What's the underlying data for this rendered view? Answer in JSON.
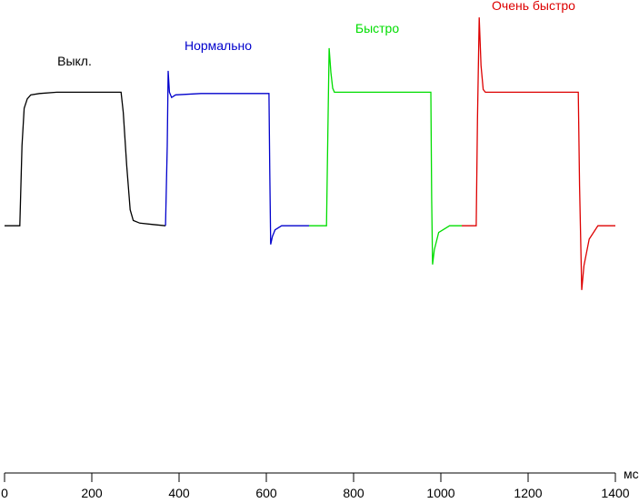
{
  "chart_data": {
    "type": "line",
    "xlabel": "мс",
    "xlim": [
      0,
      1400
    ],
    "xticks": [
      0,
      200,
      400,
      600,
      800,
      1000,
      1200,
      1400
    ],
    "ylim": [
      -185,
      169
    ],
    "series": [
      {
        "name": "Выкл.",
        "color": "#000000",
        "x": [
          0,
          35,
          40,
          45,
          52,
          60,
          80,
          120,
          267,
          272,
          280,
          288,
          295,
          310,
          340,
          369
        ],
        "values": [
          0,
          0,
          60,
          88,
          95,
          98,
          99,
          100,
          100,
          85,
          45,
          12,
          4,
          2,
          1,
          0
        ]
      },
      {
        "name": "Нормально",
        "color": "#0000cc",
        "x": [
          369,
          373,
          375,
          378,
          383,
          392,
          450,
          606,
          608,
          610,
          614,
          620,
          635,
          698
        ],
        "values": [
          0,
          60,
          116,
          100,
          96,
          98,
          99,
          99,
          40,
          -14,
          -8,
          -3,
          0,
          0
        ]
      },
      {
        "name": "Быстро",
        "color": "#00dd00",
        "x": [
          698,
          738,
          741,
          744,
          748,
          752,
          756,
          800,
          977,
          979,
          981,
          985,
          995,
          1020,
          1048
        ],
        "values": [
          0,
          0,
          70,
          133,
          115,
          103,
          100,
          100,
          100,
          20,
          -29,
          -18,
          -5,
          0,
          0
        ]
      },
      {
        "name": "Очень быстро",
        "color": "#dd0000",
        "x": [
          1048,
          1081,
          1084,
          1088,
          1092,
          1097,
          1102,
          1150,
          1315,
          1318,
          1323,
          1328,
          1340,
          1360,
          1400
        ],
        "values": [
          0,
          0,
          80,
          156,
          120,
          102,
          100,
          100,
          100,
          30,
          -48,
          -30,
          -10,
          0,
          0
        ]
      }
    ]
  }
}
